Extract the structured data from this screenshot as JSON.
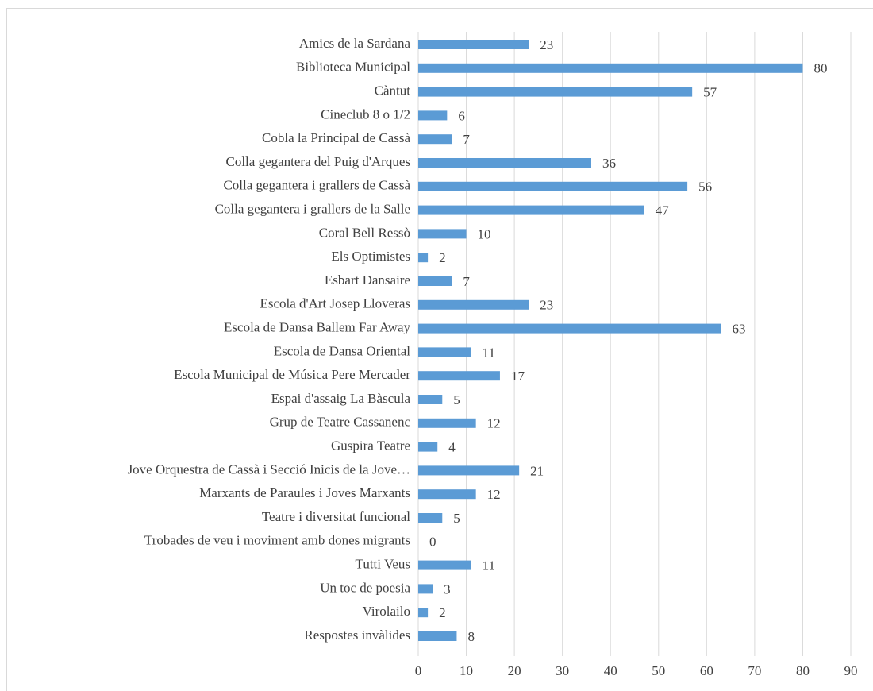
{
  "chart_data": {
    "type": "bar",
    "orientation": "horizontal",
    "categories": [
      "Amics de la Sardana",
      "Biblioteca Municipal",
      "Càntut",
      "Cineclub 8 o 1/2",
      "Cobla la Principal de Cassà",
      "Colla gegantera del Puig d'Arques",
      "Colla gegantera i grallers de Cassà",
      "Colla gegantera i grallers de la Salle",
      "Coral Bell Ressò",
      "Els Optimistes",
      "Esbart Dansaire",
      "Escola d'Art Josep Lloveras",
      "Escola de Dansa Ballem Far Away",
      "Escola de Dansa Oriental",
      "Escola Municipal de Música Pere Mercader",
      "Espai d'assaig La Bàscula",
      "Grup de Teatre Cassanenc",
      "Guspira Teatre",
      "Jove Orquestra de Cassà i Secció Inicis de la Jove…",
      "Marxants de Paraules i Joves Marxants",
      "Teatre i diversitat funcional",
      "Trobades de veu i moviment amb dones migrants",
      "Tutti Veus",
      "Un toc de poesia",
      "Virolailo",
      "Respostes invàlides"
    ],
    "values": [
      23,
      80,
      57,
      6,
      7,
      36,
      56,
      47,
      10,
      2,
      7,
      23,
      63,
      11,
      17,
      5,
      12,
      4,
      21,
      12,
      5,
      0,
      11,
      3,
      2,
      8
    ],
    "color": "#5b9bd5",
    "xlim": [
      0,
      90
    ],
    "xticks": [
      0,
      10,
      20,
      30,
      40,
      50,
      60,
      70,
      80,
      90
    ],
    "grid": true
  }
}
